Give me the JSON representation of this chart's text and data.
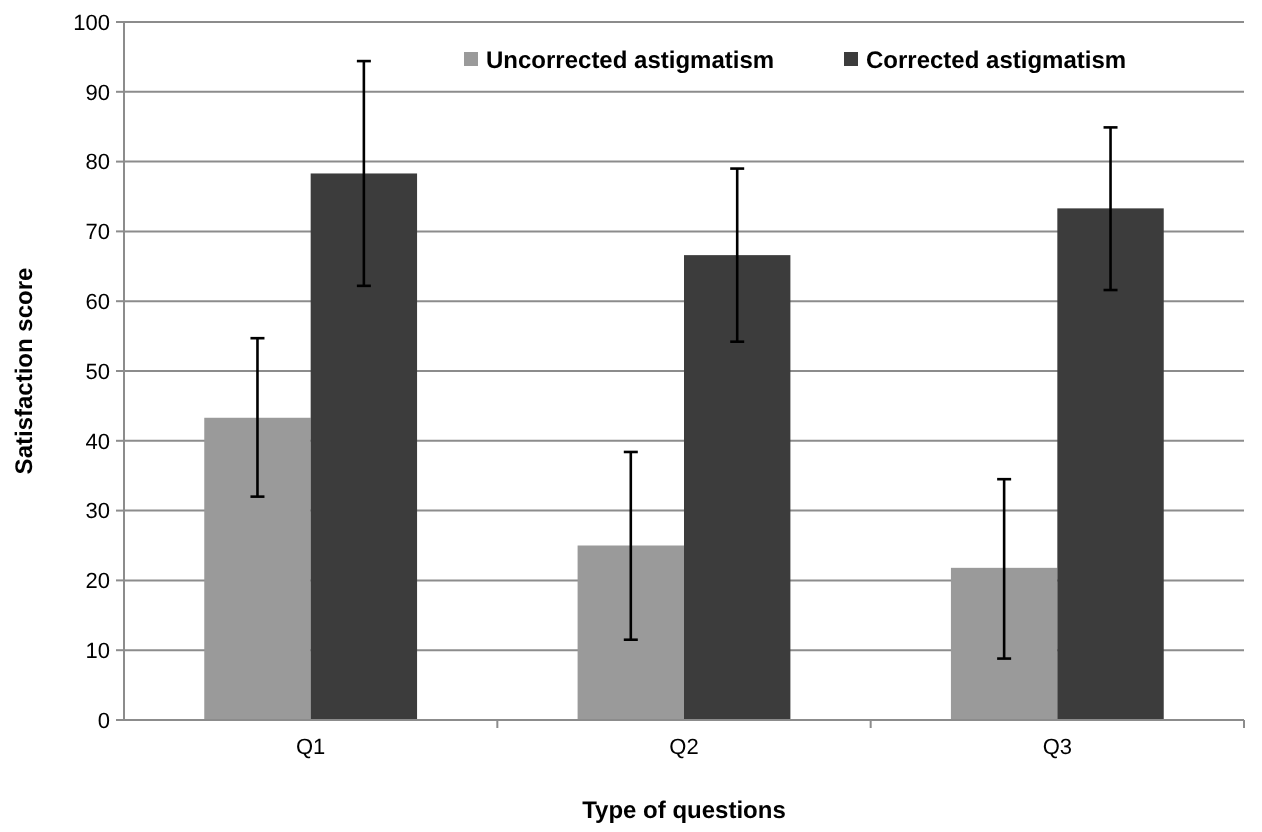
{
  "chart_data": {
    "type": "bar",
    "xlabel": "Type of questions",
    "ylabel": "Satisfaction score",
    "categories": [
      "Q1",
      "Q2",
      "Q3"
    ],
    "series": [
      {
        "name": "Uncorrected astigmatism",
        "color": "#9a9a9a",
        "values": [
          43.3,
          25,
          21.8
        ],
        "errors": [
          [
            32,
            54.7
          ],
          [
            11.5,
            38.4
          ],
          [
            8.8,
            34.5
          ]
        ]
      },
      {
        "name": "Corrected astigmatism",
        "color": "#3c3c3c",
        "values": [
          78.3,
          66.6,
          73.3
        ],
        "errors": [
          [
            62.2,
            94.4
          ],
          [
            54.2,
            79
          ],
          [
            61.6,
            84.9
          ]
        ]
      }
    ],
    "ylim": [
      0,
      100
    ],
    "yticks": [
      0,
      10,
      20,
      30,
      40,
      50,
      60,
      70,
      80,
      90,
      100
    ],
    "grid": "y",
    "legend": "top right"
  }
}
